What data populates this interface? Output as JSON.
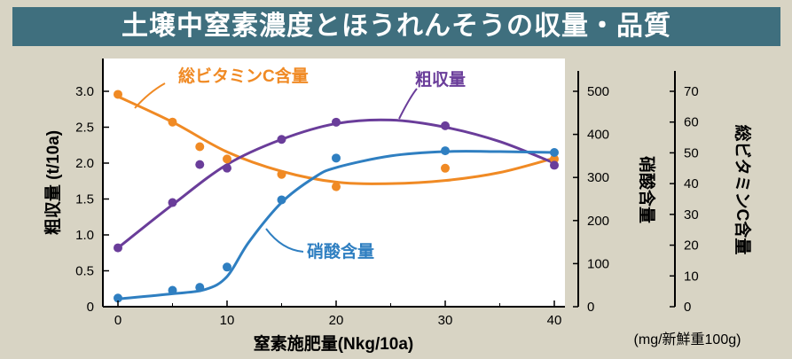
{
  "title": "土壌中窒素濃度とほうれんそうの収量・品質",
  "colors": {
    "background": "#d8d4c4",
    "plot_area": "#ffffff",
    "title_bar": "#3f6f7e",
    "vitamin_c": "#f08a24",
    "yield": "#6a3d9a",
    "nitrate": "#2f7fc1"
  },
  "labels": {
    "vitamin_c": "総ビタミンC含量",
    "yield": "粗収量",
    "nitrate": "硝酸含量",
    "y_left": "粗収量 (t/10a)",
    "y_nitrate": "硝酸含量",
    "y_vitc": "総ビタミンC含量",
    "x_axis": "窒素施肥量(Nkg/10a)",
    "unit_note": "(mg/新鮮重100g)"
  },
  "chart_data": {
    "type": "scatter",
    "xlabel": "窒素施肥量(Nkg/10a)",
    "x_ticks": [
      "0",
      "10",
      "20",
      "30",
      "40"
    ],
    "xlim": [
      0,
      40
    ],
    "axes": [
      {
        "id": "yield",
        "label": "粗収量 (t/10a)",
        "ylim": [
          0,
          3.0
        ],
        "ticks": [
          "0",
          "0.5",
          "1.0",
          "1.5",
          "2.0",
          "2.5",
          "3.0"
        ]
      },
      {
        "id": "nitrate",
        "label": "硝酸含量",
        "ylim": [
          0,
          500
        ],
        "ticks": [
          "0",
          "100",
          "200",
          "300",
          "400",
          "500"
        ]
      },
      {
        "id": "vitamin_c",
        "label": "総ビタミンC含量",
        "ylim": [
          0,
          70
        ],
        "ticks": [
          "0",
          "10",
          "20",
          "30",
          "40",
          "50",
          "60",
          "70"
        ]
      }
    ],
    "series": [
      {
        "name": "総ビタミンC含量",
        "axis": "vitamin_c",
        "x": [
          0,
          5,
          7.5,
          10,
          15,
          20,
          30,
          40
        ],
        "y": [
          69,
          60,
          52,
          48,
          43,
          39,
          45,
          48
        ],
        "fit_x": [
          0,
          5,
          10,
          15,
          20,
          25,
          30,
          35,
          40
        ],
        "fit_y": [
          68.3,
          60,
          50.3,
          44,
          40.5,
          40,
          41,
          43.6,
          48.3
        ]
      },
      {
        "name": "粗収量",
        "axis": "yield",
        "x": [
          0,
          5,
          7.5,
          10,
          15,
          20,
          30,
          40
        ],
        "y": [
          0.82,
          1.45,
          1.98,
          1.93,
          2.33,
          2.57,
          2.52,
          1.97
        ],
        "fit_x": [
          0,
          5,
          10,
          15,
          20,
          25,
          30,
          35,
          40
        ],
        "fit_y": [
          0.82,
          1.42,
          1.98,
          2.33,
          2.55,
          2.6,
          2.5,
          2.3,
          2.0
        ]
      },
      {
        "name": "硝酸含量",
        "axis": "nitrate",
        "x": [
          0,
          5,
          7.5,
          10,
          15,
          20,
          30,
          40
        ],
        "y": [
          20,
          38,
          45,
          92,
          248,
          345,
          362,
          358
        ],
        "fit_x": [
          0,
          5,
          8,
          10,
          12,
          15,
          18,
          20,
          25,
          30,
          35,
          40
        ],
        "fit_y": [
          18,
          30,
          40,
          70,
          150,
          242,
          300,
          323,
          350,
          360,
          360,
          358
        ]
      }
    ]
  }
}
